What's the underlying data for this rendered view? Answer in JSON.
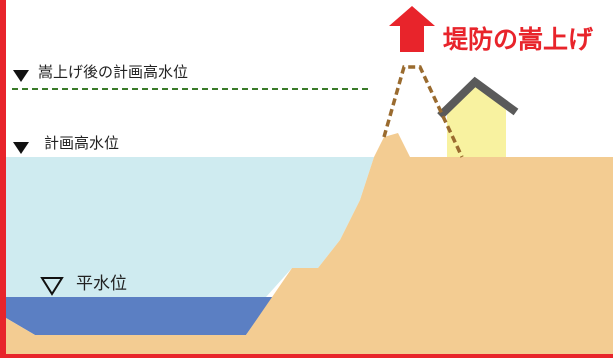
{
  "diagram": {
    "title": "堤防の嵩上げ",
    "labels": {
      "raised_level": "嵩上げ後の計画高水位",
      "planned_level": "計画高水位",
      "normal_level": "平水位"
    },
    "colors": {
      "title": "#e8242b",
      "arrow": "#e8242b",
      "border": "#e8242b",
      "embankment": "#f3cc92",
      "flood_water": "#cfebf0",
      "normal_water": "#5b7fc3",
      "raised_line": "#3a7a2a",
      "dashed_outline": "#9a6b2f",
      "house_wall": "#f8f2a0",
      "house_roof": "#5a5a5a",
      "marker": "#111111"
    }
  }
}
